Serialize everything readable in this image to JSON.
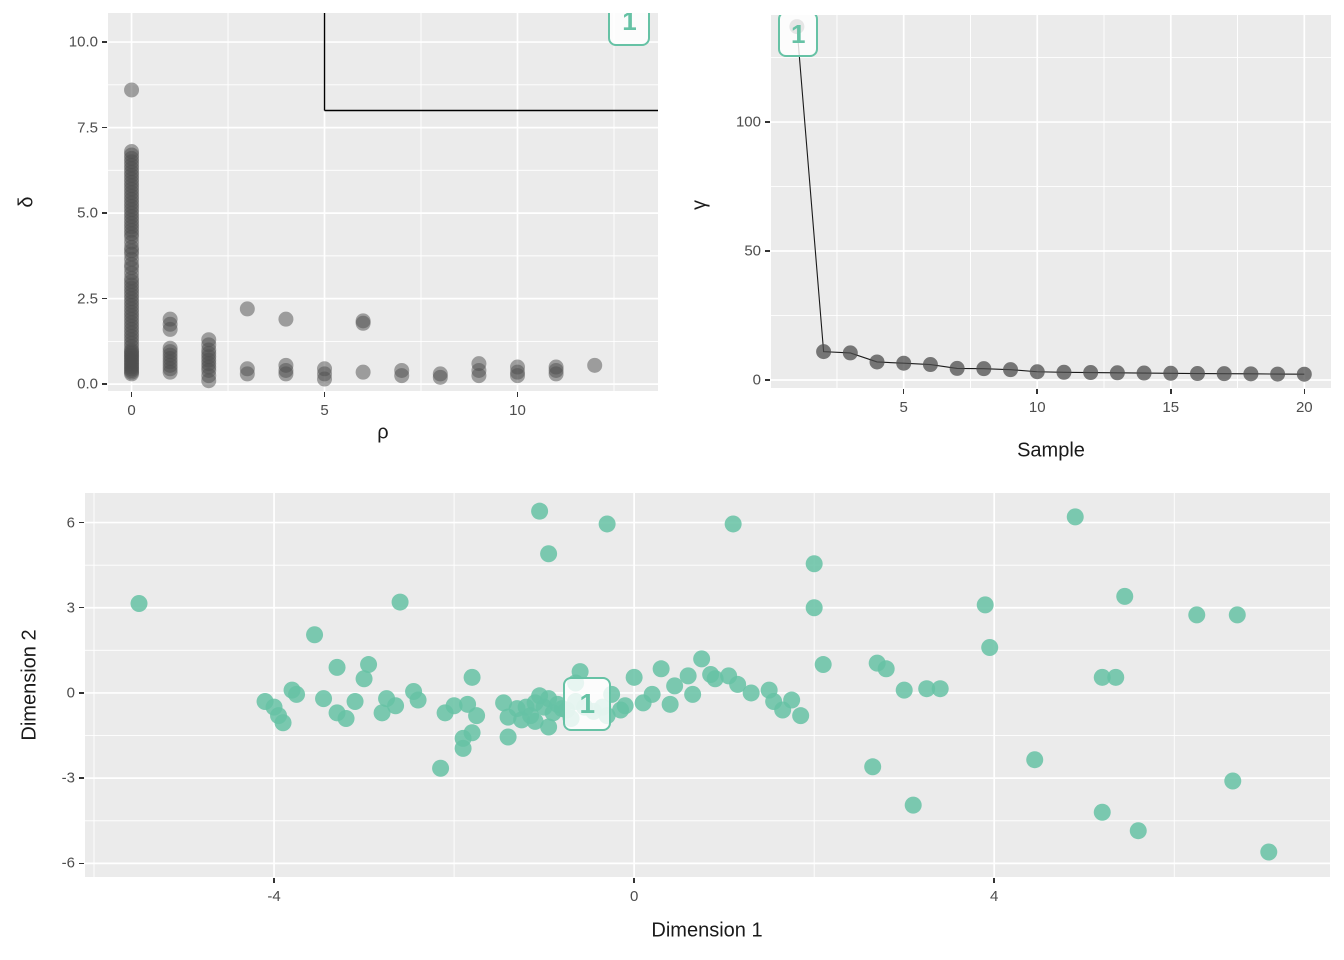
{
  "figure": {
    "background": "#FFFFFF",
    "panel_background": "#EBEBEB",
    "gridline_color": "#FFFFFF",
    "tick_label_color": "#4D4D4D",
    "axis_title_color": "#1A1A1A",
    "point_color_gray": "#4D4D4D",
    "point_color_teal": "#66C2A5",
    "cluster_label_text_color": "#66C2A5",
    "threshold_line_color": "#000000",
    "line_color": "#1A1A1A"
  },
  "chart_data": [
    {
      "id": "decision-plot",
      "type": "scatter",
      "xlabel": "ρ",
      "ylabel": "δ",
      "xlim": [
        -0.61,
        13.64
      ],
      "ylim": [
        -0.2,
        10.85
      ],
      "xticks": [
        {
          "v": 0,
          "label": "0"
        },
        {
          "v": 5,
          "label": "5"
        },
        {
          "v": 10,
          "label": "10"
        }
      ],
      "yticks": [
        {
          "v": 0,
          "label": "0.0"
        },
        {
          "v": 2.5,
          "label": "2.5"
        },
        {
          "v": 5,
          "label": "5.0"
        },
        {
          "v": 7.5,
          "label": "7.5"
        },
        {
          "v": 10,
          "label": "10.0"
        }
      ],
      "xminor": [
        2.5,
        7.5,
        12.5
      ],
      "yminor": [
        1.25,
        3.75,
        6.25,
        8.75
      ],
      "point_style": {
        "color": "gray",
        "radius": 7.5,
        "opacity": 0.5
      },
      "grid": true,
      "legend": "none",
      "threshold_lines": [
        {
          "x1": 5,
          "y1": 10.85,
          "x2": 5,
          "y2": 8
        },
        {
          "x1": 5,
          "y1": 8,
          "x2": 13.64,
          "y2": 8
        }
      ],
      "cluster_labels": [
        {
          "text": "1",
          "x": 12.9,
          "y": 10.6
        }
      ],
      "points": [
        [
          0,
          8.6
        ],
        [
          0,
          6.8
        ],
        [
          0,
          6.7
        ],
        [
          0,
          6.6
        ],
        [
          0,
          6.5
        ],
        [
          0,
          6.4
        ],
        [
          0,
          6.3
        ],
        [
          0,
          6.2
        ],
        [
          0,
          6.1
        ],
        [
          0,
          6.0
        ],
        [
          0,
          5.9
        ],
        [
          0,
          5.8
        ],
        [
          0,
          5.7
        ],
        [
          0,
          5.6
        ],
        [
          0,
          5.5
        ],
        [
          0,
          5.4
        ],
        [
          0,
          5.3
        ],
        [
          0,
          5.2
        ],
        [
          0,
          5.1
        ],
        [
          0,
          5.0
        ],
        [
          0,
          4.9
        ],
        [
          0,
          4.8
        ],
        [
          0,
          4.7
        ],
        [
          0,
          4.6
        ],
        [
          0,
          4.5
        ],
        [
          0,
          4.4
        ],
        [
          0,
          4.3
        ],
        [
          0,
          4.15
        ],
        [
          0,
          4.0
        ],
        [
          0,
          3.9
        ],
        [
          0,
          3.8
        ],
        [
          0,
          3.65
        ],
        [
          0,
          3.5
        ],
        [
          0,
          3.4
        ],
        [
          0,
          3.25
        ],
        [
          0,
          3.1
        ],
        [
          0,
          3.0
        ],
        [
          0,
          2.9
        ],
        [
          0,
          2.8
        ],
        [
          0,
          2.7
        ],
        [
          0,
          2.6
        ],
        [
          0,
          2.5
        ],
        [
          0,
          2.4
        ],
        [
          0,
          2.3
        ],
        [
          0,
          2.2
        ],
        [
          0,
          2.1
        ],
        [
          0,
          2.0
        ],
        [
          0,
          1.9
        ],
        [
          0,
          1.8
        ],
        [
          0,
          1.7
        ],
        [
          0,
          1.6
        ],
        [
          0,
          1.5
        ],
        [
          0,
          1.4
        ],
        [
          0,
          1.3
        ],
        [
          0,
          1.2
        ],
        [
          0,
          1.1
        ],
        [
          0,
          1.0
        ],
        [
          0,
          0.95
        ],
        [
          0,
          0.9
        ],
        [
          0,
          0.85
        ],
        [
          0,
          0.8
        ],
        [
          0,
          0.75
        ],
        [
          0,
          0.7
        ],
        [
          0,
          0.65
        ],
        [
          0,
          0.6
        ],
        [
          0,
          0.55
        ],
        [
          0,
          0.5
        ],
        [
          0,
          0.45
        ],
        [
          0,
          0.4
        ],
        [
          0,
          0.35
        ],
        [
          0,
          0.3
        ],
        [
          1,
          1.9
        ],
        [
          1,
          1.75
        ],
        [
          1,
          1.6
        ],
        [
          1,
          1.05
        ],
        [
          1,
          0.95
        ],
        [
          1,
          0.85
        ],
        [
          1,
          0.75
        ],
        [
          1,
          0.65
        ],
        [
          1,
          0.55
        ],
        [
          1,
          0.45
        ],
        [
          1,
          0.35
        ],
        [
          2,
          1.3
        ],
        [
          2,
          1.15
        ],
        [
          2,
          1.0
        ],
        [
          2,
          0.9
        ],
        [
          2,
          0.8
        ],
        [
          2,
          0.7
        ],
        [
          2,
          0.6
        ],
        [
          2,
          0.5
        ],
        [
          2,
          0.4
        ],
        [
          2,
          0.25
        ],
        [
          2,
          0.1
        ],
        [
          3,
          2.2
        ],
        [
          3,
          0.45
        ],
        [
          3,
          0.3
        ],
        [
          4,
          1.9
        ],
        [
          4,
          0.55
        ],
        [
          4,
          0.4
        ],
        [
          4,
          0.3
        ],
        [
          5,
          0.45
        ],
        [
          5,
          0.3
        ],
        [
          5,
          0.15
        ],
        [
          6,
          1.85
        ],
        [
          6,
          1.78
        ],
        [
          6,
          0.35
        ],
        [
          7,
          0.4
        ],
        [
          7,
          0.25
        ],
        [
          8,
          0.3
        ],
        [
          8,
          0.2
        ],
        [
          9,
          0.6
        ],
        [
          9,
          0.4
        ],
        [
          9,
          0.25
        ],
        [
          10,
          0.5
        ],
        [
          10,
          0.35
        ],
        [
          10,
          0.25
        ],
        [
          11,
          0.5
        ],
        [
          11,
          0.4
        ],
        [
          11,
          0.3
        ],
        [
          12,
          0.55
        ]
      ]
    },
    {
      "id": "gamma-plot",
      "type": "line-scatter",
      "xlabel": "Sample",
      "ylabel": "γ",
      "xlim": [
        0.03,
        21.0
      ],
      "ylim": [
        -3.1,
        141.5
      ],
      "xticks": [
        {
          "v": 5,
          "label": "5"
        },
        {
          "v": 10,
          "label": "10"
        },
        {
          "v": 15,
          "label": "15"
        },
        {
          "v": 20,
          "label": "20"
        }
      ],
      "yticks": [
        {
          "v": 0,
          "label": "0"
        },
        {
          "v": 50,
          "label": "50"
        },
        {
          "v": 100,
          "label": "100"
        }
      ],
      "xminor": [
        2.5,
        7.5,
        12.5,
        17.5
      ],
      "yminor": [
        25,
        75,
        125
      ],
      "point_style": {
        "color": "gray",
        "radius": 7.5,
        "opacity": 0.75
      },
      "grid": true,
      "legend": "none",
      "threshold_lines": [],
      "cluster_labels": [
        {
          "text": "1",
          "x": 1.05,
          "y": 134
        }
      ],
      "points": [
        [
          1,
          137
        ],
        [
          2,
          11
        ],
        [
          3,
          10.5
        ],
        [
          4,
          7
        ],
        [
          5,
          6.5
        ],
        [
          6,
          6
        ],
        [
          7,
          4.5
        ],
        [
          8,
          4.4
        ],
        [
          9,
          4
        ],
        [
          10,
          3.2
        ],
        [
          11,
          3
        ],
        [
          12,
          2.9
        ],
        [
          13,
          2.8
        ],
        [
          14,
          2.7
        ],
        [
          15,
          2.6
        ],
        [
          16,
          2.5
        ],
        [
          17,
          2.45
        ],
        [
          18,
          2.4
        ],
        [
          19,
          2.3
        ],
        [
          20,
          2.25
        ]
      ]
    },
    {
      "id": "map-plot",
      "type": "scatter",
      "xlabel": "Dimension 1",
      "ylabel": "Dimension 2",
      "xlim": [
        -6.1,
        7.73
      ],
      "ylim": [
        -6.48,
        7.04
      ],
      "xticks": [
        {
          "v": -4,
          "label": "-4"
        },
        {
          "v": 0,
          "label": "0"
        },
        {
          "v": 4,
          "label": "4"
        }
      ],
      "yticks": [
        {
          "v": -6,
          "label": "-6"
        },
        {
          "v": -3,
          "label": "-3"
        },
        {
          "v": 0,
          "label": "0"
        },
        {
          "v": 3,
          "label": "3"
        },
        {
          "v": 6,
          "label": "6"
        }
      ],
      "xminor": [
        -6,
        -2,
        2,
        6
      ],
      "yminor": [
        -4.5,
        -1.5,
        1.5,
        4.5
      ],
      "point_style": {
        "color": "teal",
        "radius": 8.5,
        "opacity": 0.85
      },
      "grid": true,
      "legend": "none",
      "threshold_lines": [],
      "cluster_labels": [
        {
          "text": "1",
          "x": -0.52,
          "y": -0.4
        }
      ],
      "points": [
        [
          -5.5,
          3.15
        ],
        [
          -2.6,
          3.2
        ],
        [
          -3.55,
          2.05
        ],
        [
          -3.3,
          0.9
        ],
        [
          -2.95,
          1.0
        ],
        [
          -3.0,
          0.5
        ],
        [
          -3.8,
          0.1
        ],
        [
          -3.75,
          -0.05
        ],
        [
          -4.0,
          -0.5
        ],
        [
          -3.95,
          -0.8
        ],
        [
          -3.9,
          -1.05
        ],
        [
          -4.1,
          -0.3
        ],
        [
          -3.45,
          -0.2
        ],
        [
          -3.3,
          -0.7
        ],
        [
          -3.2,
          -0.9
        ],
        [
          -3.1,
          -0.3
        ],
        [
          -2.8,
          -0.7
        ],
        [
          -2.75,
          -0.2
        ],
        [
          -2.65,
          -0.45
        ],
        [
          -2.45,
          0.05
        ],
        [
          -2.4,
          -0.25
        ],
        [
          -2.1,
          -0.7
        ],
        [
          -2.0,
          -0.45
        ],
        [
          -1.85,
          -0.4
        ],
        [
          -1.75,
          -0.8
        ],
        [
          -1.8,
          0.55
        ],
        [
          -1.9,
          -1.6
        ],
        [
          -1.9,
          -1.95
        ],
        [
          -2.15,
          -2.65
        ],
        [
          -1.8,
          -1.4
        ],
        [
          -1.45,
          -0.35
        ],
        [
          -1.4,
          -0.85
        ],
        [
          -1.4,
          -1.55
        ],
        [
          -1.3,
          -0.55
        ],
        [
          -1.25,
          -0.95
        ],
        [
          -1.2,
          -0.5
        ],
        [
          -1.15,
          -0.8
        ],
        [
          -1.1,
          -1.0
        ],
        [
          -1.05,
          -0.1
        ],
        [
          -1.0,
          -0.5
        ],
        [
          -0.95,
          -0.2
        ],
        [
          -0.9,
          -0.7
        ],
        [
          -0.85,
          -0.4
        ],
        [
          -0.95,
          -1.2
        ],
        [
          -1.1,
          -0.35
        ],
        [
          -0.8,
          -0.55
        ],
        [
          -0.75,
          -0.6
        ],
        [
          -0.7,
          -0.9
        ],
        [
          -0.65,
          -0.3
        ],
        [
          -0.6,
          0.75
        ],
        [
          -0.65,
          0.35
        ],
        [
          -0.55,
          -0.5
        ],
        [
          -0.45,
          -0.65
        ],
        [
          -0.35,
          -0.5
        ],
        [
          -0.25,
          -0.05
        ],
        [
          -0.3,
          -0.8
        ],
        [
          -0.15,
          -0.6
        ],
        [
          -0.1,
          -0.45
        ],
        [
          0.0,
          0.55
        ],
        [
          0.1,
          -0.35
        ],
        [
          0.2,
          -0.05
        ],
        [
          0.3,
          0.85
        ],
        [
          0.4,
          -0.4
        ],
        [
          0.45,
          0.25
        ],
        [
          0.6,
          0.6
        ],
        [
          0.65,
          -0.05
        ],
        [
          0.75,
          1.2
        ],
        [
          0.85,
          0.65
        ],
        [
          0.9,
          0.5
        ],
        [
          1.05,
          0.6
        ],
        [
          1.15,
          0.3
        ],
        [
          1.3,
          0.0
        ],
        [
          1.5,
          0.1
        ],
        [
          1.55,
          -0.3
        ],
        [
          1.65,
          -0.6
        ],
        [
          1.75,
          -0.25
        ],
        [
          1.85,
          -0.8
        ],
        [
          2.1,
          1.0
        ],
        [
          -1.05,
          6.4
        ],
        [
          -0.3,
          5.95
        ],
        [
          -0.95,
          4.9
        ],
        [
          1.1,
          5.95
        ],
        [
          2.0,
          4.55
        ],
        [
          2.0,
          3.0
        ],
        [
          2.7,
          1.05
        ],
        [
          2.8,
          0.85
        ],
        [
          3.0,
          0.1
        ],
        [
          3.25,
          0.15
        ],
        [
          3.4,
          0.15
        ],
        [
          2.65,
          -2.6
        ],
        [
          3.1,
          -3.95
        ],
        [
          3.9,
          3.1
        ],
        [
          3.95,
          1.6
        ],
        [
          4.45,
          -2.35
        ],
        [
          4.9,
          6.2
        ],
        [
          5.45,
          3.4
        ],
        [
          5.2,
          0.55
        ],
        [
          5.35,
          0.55
        ],
        [
          5.2,
          -4.2
        ],
        [
          5.6,
          -4.85
        ],
        [
          6.25,
          2.75
        ],
        [
          6.7,
          2.75
        ],
        [
          6.65,
          -3.1
        ],
        [
          7.05,
          -5.6
        ]
      ]
    }
  ]
}
